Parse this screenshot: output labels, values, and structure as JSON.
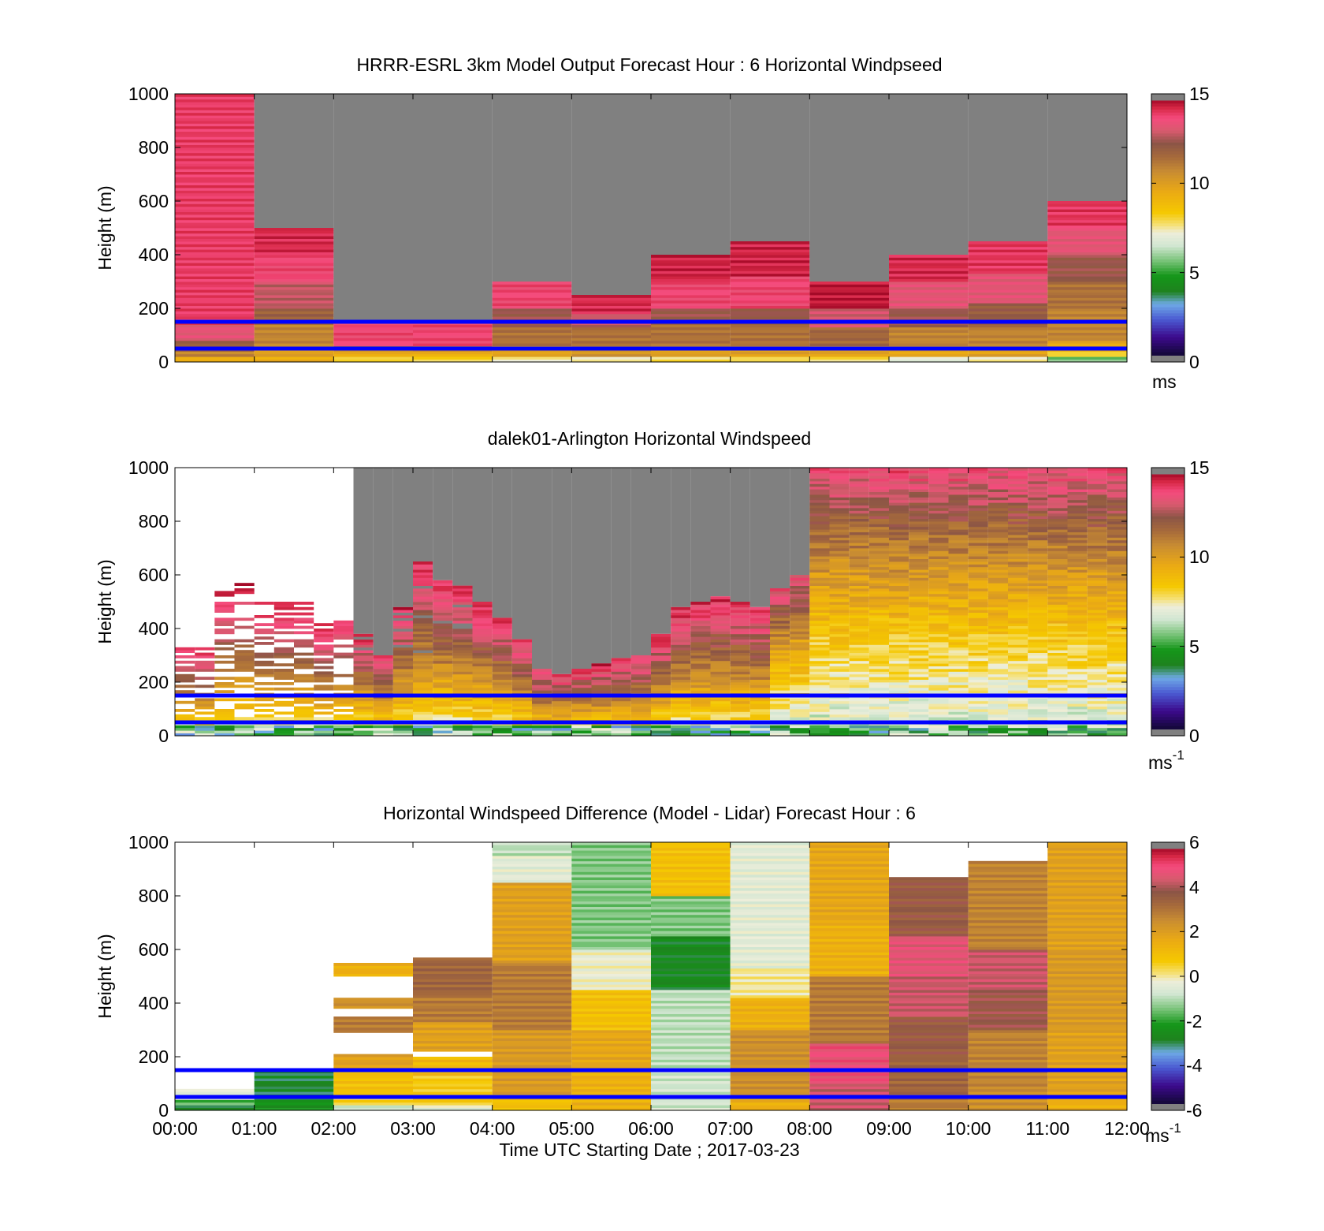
{
  "figure": {
    "xlabel": "Time UTC  Starting Date ; 2017-03-23",
    "xticks": [
      "00:00",
      "01:00",
      "02:00",
      "03:00",
      "04:00",
      "05:00",
      "06:00",
      "07:00",
      "08:00",
      "09:00",
      "10:00",
      "11:00",
      "12:00"
    ]
  },
  "panels": [
    {
      "title": "HRRR-ESRL 3km Model Output   Forecast Hour : 6 Horizontal Windpseed",
      "ylabel": "Height (m)",
      "yticks": [
        "0",
        "200",
        "400",
        "600",
        "800",
        "1000"
      ],
      "cbar_ticks": [
        "0",
        "5",
        "10",
        "15"
      ],
      "cbar_unit": "ms",
      "cbar_unit_sup": ""
    },
    {
      "title": "dalek01-Arlington  Horizontal Windspeed",
      "ylabel": "Height (m)",
      "yticks": [
        "0",
        "200",
        "400",
        "600",
        "800",
        "1000"
      ],
      "cbar_ticks": [
        "0",
        "5",
        "10",
        "15"
      ],
      "cbar_unit": "ms",
      "cbar_unit_sup": "-1"
    },
    {
      "title": "Horizontal Windspeed Difference (Model - Lidar) Forecast Hour : 6",
      "ylabel": "Height (m)",
      "yticks": [
        "0",
        "200",
        "400",
        "600",
        "800",
        "1000"
      ],
      "cbar_ticks": [
        "-6",
        "-4",
        "-2",
        "0",
        "2",
        "4",
        "6"
      ],
      "cbar_unit": "ms",
      "cbar_unit_sup": "-1"
    }
  ],
  "chart_data": [
    {
      "type": "heatmap",
      "title": "HRRR-ESRL 3km Model Output   Forecast Hour : 6 Horizontal Windpseed",
      "xlabel": "",
      "ylabel": "Height (m)",
      "xlim": [
        0,
        12
      ],
      "ylim": [
        0,
        1000
      ],
      "units": "ms",
      "clim": [
        0,
        15
      ],
      "no_data_color": "#808080",
      "reference_lines_height_m": [
        150,
        50
      ],
      "reference_line_color": "#0000ff",
      "hours": [
        0,
        1,
        2,
        3,
        4,
        5,
        6,
        7,
        8,
        9,
        10,
        11
      ],
      "top_height_m": [
        1000,
        500,
        150,
        150,
        300,
        250,
        400,
        450,
        300,
        400,
        450,
        600
      ],
      "columns": [
        [
          [
            0,
            20,
            9.5
          ],
          [
            20,
            40,
            11
          ],
          [
            40,
            80,
            12
          ],
          [
            80,
            140,
            13.5
          ],
          [
            140,
            1000,
            14.2
          ]
        ],
        [
          [
            0,
            20,
            9.5
          ],
          [
            20,
            60,
            10
          ],
          [
            60,
            140,
            11
          ],
          [
            140,
            200,
            12
          ],
          [
            200,
            300,
            13
          ],
          [
            300,
            400,
            14
          ],
          [
            400,
            500,
            14.5
          ]
        ],
        [
          [
            0,
            20,
            8
          ],
          [
            20,
            40,
            9.5
          ],
          [
            40,
            60,
            11
          ],
          [
            60,
            150,
            14
          ]
        ],
        [
          [
            0,
            20,
            8
          ],
          [
            20,
            40,
            9.5
          ],
          [
            40,
            60,
            11
          ],
          [
            60,
            150,
            14
          ]
        ],
        [
          [
            0,
            20,
            7.5
          ],
          [
            20,
            60,
            10
          ],
          [
            60,
            130,
            11.5
          ],
          [
            130,
            200,
            12.5
          ],
          [
            200,
            300,
            14
          ]
        ],
        [
          [
            0,
            20,
            7.5
          ],
          [
            20,
            60,
            10.5
          ],
          [
            60,
            130,
            11.5
          ],
          [
            130,
            180,
            13
          ],
          [
            180,
            250,
            14.5
          ]
        ],
        [
          [
            0,
            20,
            7.8
          ],
          [
            20,
            60,
            10
          ],
          [
            60,
            140,
            11.5
          ],
          [
            140,
            200,
            12.5
          ],
          [
            200,
            300,
            14
          ],
          [
            300,
            400,
            14.6
          ]
        ],
        [
          [
            0,
            20,
            7.8
          ],
          [
            20,
            60,
            10
          ],
          [
            60,
            140,
            11.5
          ],
          [
            140,
            200,
            12.5
          ],
          [
            200,
            320,
            14
          ],
          [
            320,
            450,
            14.6
          ]
        ],
        [
          [
            0,
            20,
            7.8
          ],
          [
            20,
            60,
            10
          ],
          [
            60,
            130,
            11.8
          ],
          [
            130,
            200,
            13.2
          ],
          [
            200,
            300,
            14.8
          ]
        ],
        [
          [
            0,
            20,
            7
          ],
          [
            20,
            60,
            9.8
          ],
          [
            60,
            130,
            11
          ],
          [
            130,
            200,
            12.5
          ],
          [
            200,
            300,
            13.5
          ],
          [
            300,
            400,
            14.5
          ]
        ],
        [
          [
            0,
            20,
            7.5
          ],
          [
            20,
            60,
            10
          ],
          [
            60,
            130,
            11
          ],
          [
            130,
            220,
            12.2
          ],
          [
            220,
            330,
            13.5
          ],
          [
            330,
            450,
            14.3
          ]
        ],
        [
          [
            0,
            20,
            5.5
          ],
          [
            20,
            40,
            8
          ],
          [
            40,
            80,
            9.8
          ],
          [
            80,
            200,
            11
          ],
          [
            200,
            300,
            11.5
          ],
          [
            300,
            400,
            12.5
          ],
          [
            400,
            500,
            13.5
          ],
          [
            500,
            600,
            14.3
          ]
        ]
      ]
    },
    {
      "type": "heatmap",
      "title": "dalek01-Arlington  Horizontal Windspeed",
      "xlabel": "",
      "ylabel": "Height (m)",
      "xlim": [
        0,
        12
      ],
      "ylim": [
        0,
        1000
      ],
      "units": "ms-1",
      "clim": [
        0,
        15
      ],
      "no_data_color": "#808080",
      "reference_lines_height_m": [
        150,
        50
      ],
      "reference_line_color": "#0000ff",
      "time_step_h": 0.25,
      "valid_top_m": [
        350,
        330,
        550,
        580,
        500,
        500,
        500,
        420,
        450,
        380,
        300,
        480,
        650,
        580,
        560,
        500,
        440,
        360,
        250,
        230,
        250,
        270,
        290,
        300,
        380,
        480,
        500,
        520,
        500,
        480,
        550,
        600,
        1000,
        1000,
        1000,
        1000,
        1000,
        1000,
        1000,
        1000,
        1000,
        1000,
        1000,
        1000,
        1000,
        1000,
        1000,
        1000
      ],
      "gray_top_m": [
        0,
        0,
        0,
        0,
        0,
        0,
        0,
        0,
        0,
        1000,
        1000,
        1000,
        1000,
        1000,
        1000,
        1000,
        1000,
        1000,
        1000,
        1000,
        1000,
        1000,
        1000,
        1000,
        1000,
        1000,
        1000,
        1000,
        1000,
        1000,
        1000,
        1000,
        1000,
        1000,
        1000,
        1000,
        1000,
        1000,
        1000,
        1000,
        1000,
        1000,
        1000,
        1000,
        1000,
        1000,
        1000,
        1000
      ],
      "profile_model": "windspeed rises from ~6 near the surface to ~14 aloft; 04:00-09:00 fully covered, gray above valid data"
    },
    {
      "type": "heatmap",
      "title": "Horizontal Windspeed Difference (Model - Lidar) Forecast Hour : 6",
      "xlabel": "Time UTC  Starting Date ; 2017-03-23",
      "ylabel": "Height (m)",
      "xlim": [
        0,
        12
      ],
      "ylim": [
        0,
        1000
      ],
      "units": "ms-1",
      "clim": [
        -6,
        6
      ],
      "reference_lines_height_m": [
        150,
        50
      ],
      "reference_line_color": "#0000ff",
      "hours": [
        0,
        1,
        2,
        3,
        4,
        5,
        6,
        7,
        8,
        9,
        10,
        11
      ],
      "top_height_m": [
        80,
        150,
        550,
        570,
        1000,
        1000,
        1000,
        1000,
        1000,
        870,
        930,
        1000
      ],
      "columns": [
        [
          [
            0,
            20,
            -3
          ],
          [
            20,
            40,
            -1.8
          ],
          [
            40,
            80,
            -0.5
          ]
        ],
        [
          [
            0,
            40,
            -2.5
          ],
          [
            40,
            150,
            -3
          ]
        ],
        [
          [
            0,
            20,
            -1
          ],
          [
            20,
            60,
            0.5
          ],
          [
            60,
            150,
            1
          ],
          [
            150,
            210,
            2
          ],
          [
            290,
            350,
            3
          ],
          [
            380,
            420,
            2.5
          ],
          [
            500,
            550,
            1.5
          ]
        ],
        [
          [
            0,
            20,
            -0.5
          ],
          [
            20,
            130,
            0.7
          ],
          [
            130,
            200,
            1.2
          ],
          [
            220,
            330,
            2
          ],
          [
            330,
            430,
            3
          ],
          [
            430,
            570,
            3.5
          ]
        ],
        [
          [
            0,
            60,
            1
          ],
          [
            60,
            300,
            2.2
          ],
          [
            300,
            550,
            3
          ],
          [
            550,
            850,
            2
          ],
          [
            850,
            950,
            -0.5
          ],
          [
            950,
            1000,
            -1
          ]
        ],
        [
          [
            0,
            150,
            1.5
          ],
          [
            150,
            300,
            1.8
          ],
          [
            300,
            450,
            1
          ],
          [
            450,
            600,
            -0.3
          ],
          [
            600,
            1000,
            -1.5
          ]
        ],
        [
          [
            0,
            150,
            -0.8
          ],
          [
            150,
            450,
            -1
          ],
          [
            450,
            650,
            -2.8
          ],
          [
            650,
            800,
            -1.5
          ],
          [
            800,
            1000,
            1
          ]
        ],
        [
          [
            0,
            60,
            1.5
          ],
          [
            60,
            300,
            2.5
          ],
          [
            300,
            420,
            1.5
          ],
          [
            420,
            530,
            0
          ],
          [
            530,
            1000,
            -0.5
          ]
        ],
        [
          [
            0,
            100,
            4.5
          ],
          [
            100,
            250,
            5
          ],
          [
            250,
            500,
            3
          ],
          [
            500,
            700,
            1.5
          ],
          [
            700,
            1000,
            1.8
          ]
        ],
        [
          [
            0,
            60,
            3
          ],
          [
            60,
            200,
            3.5
          ],
          [
            200,
            350,
            3.8
          ],
          [
            350,
            500,
            4.5
          ],
          [
            500,
            650,
            4.8
          ],
          [
            650,
            870,
            3.8
          ]
        ],
        [
          [
            0,
            80,
            2.5
          ],
          [
            80,
            300,
            2.8
          ],
          [
            300,
            450,
            4
          ],
          [
            450,
            600,
            4.5
          ],
          [
            600,
            930,
            2.8
          ]
        ],
        [
          [
            0,
            60,
            1.5
          ],
          [
            60,
            300,
            2
          ],
          [
            300,
            600,
            2.2
          ],
          [
            600,
            1000,
            2
          ]
        ]
      ]
    }
  ]
}
